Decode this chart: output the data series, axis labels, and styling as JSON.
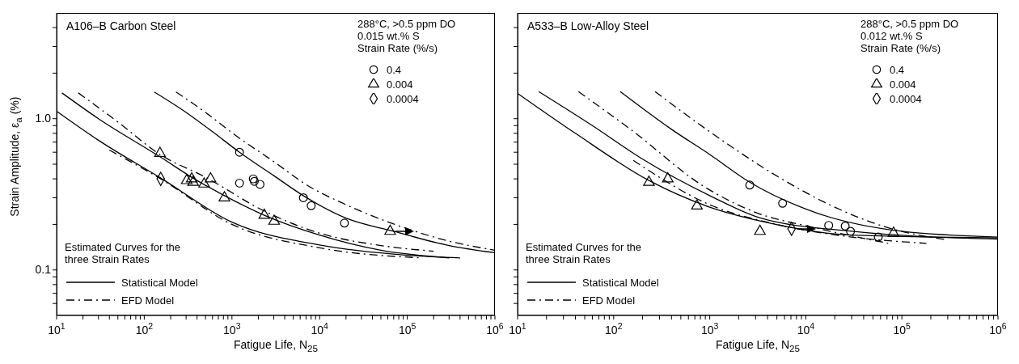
{
  "chart_data": [
    {
      "type": "scatter",
      "title": "A106–B Carbon Steel",
      "xlabel": "Fatigue Life, N$_{25}$",
      "ylabel": "Strain Amplitude, ε$_{a}$ (%)",
      "legend_title": "Strain Rate (%/s)",
      "legend": "bottom left",
      "log": "xy",
      "grid": false,
      "annotations": [
        "288°C, >0.5 ppm DO",
        "0.015 wt.% S",
        "Estimated Curves for the three Strain Rates"
      ],
      "xlim": [
        10,
        1000000
      ],
      "ylim": [
        0.05,
        5
      ],
      "xticks": [
        {
          "value": 10,
          "label": "10$^{1}$"
        },
        {
          "value": 20,
          "label": null
        },
        {
          "value": 30,
          "label": null
        },
        {
          "value": 40,
          "label": null
        },
        {
          "value": 50,
          "label": null
        },
        {
          "value": 60,
          "label": null
        },
        {
          "value": 70,
          "label": null
        },
        {
          "value": 80,
          "label": null
        },
        {
          "value": 90,
          "label": null
        },
        {
          "value": 100,
          "label": "10$^{2}$"
        },
        {
          "value": 200,
          "label": null
        },
        {
          "value": 300,
          "label": null
        },
        {
          "value": 400,
          "label": null
        },
        {
          "value": 500,
          "label": null
        },
        {
          "value": 600,
          "label": null
        },
        {
          "value": 700,
          "label": null
        },
        {
          "value": 800,
          "label": null
        },
        {
          "value": 900,
          "label": null
        },
        {
          "value": 1000,
          "label": "10$^{3}$"
        },
        {
          "value": 2000,
          "label": null
        },
        {
          "value": 3000,
          "label": null
        },
        {
          "value": 4000,
          "label": null
        },
        {
          "value": 5000,
          "label": null
        },
        {
          "value": 6000,
          "label": null
        },
        {
          "value": 7000,
          "label": null
        },
        {
          "value": 8000,
          "label": null
        },
        {
          "value": 9000,
          "label": null
        },
        {
          "value": 10000,
          "label": "10$^{4}$"
        },
        {
          "value": 20000,
          "label": null
        },
        {
          "value": 30000,
          "label": null
        },
        {
          "value": 40000,
          "label": null
        },
        {
          "value": 50000,
          "label": null
        },
        {
          "value": 60000,
          "label": null
        },
        {
          "value": 70000,
          "label": null
        },
        {
          "value": 80000,
          "label": null
        },
        {
          "value": 90000,
          "label": null
        },
        {
          "value": 100000,
          "label": "10$^{5}$"
        },
        {
          "value": 200000,
          "label": null
        },
        {
          "value": 300000,
          "label": null
        },
        {
          "value": 400000,
          "label": null
        },
        {
          "value": 500000,
          "label": null
        },
        {
          "value": 600000,
          "label": null
        },
        {
          "value": 700000,
          "label": null
        },
        {
          "value": 800000,
          "label": null
        },
        {
          "value": 900000,
          "label": null
        },
        {
          "value": 1000000,
          "label": "10$^{6}$"
        }
      ],
      "yticks": [
        {
          "value": 0.06,
          "label": null
        },
        {
          "value": 0.07,
          "label": null
        },
        {
          "value": 0.08,
          "label": null
        },
        {
          "value": 0.09,
          "label": null
        },
        0.1,
        {
          "value": 0.2,
          "label": null
        },
        {
          "value": 0.3,
          "label": null
        },
        {
          "value": 0.4,
          "label": null
        },
        {
          "value": 0.5,
          "label": null
        },
        {
          "value": 0.6,
          "label": null
        },
        {
          "value": 0.7,
          "label": null
        },
        {
          "value": 0.8,
          "label": null
        },
        {
          "value": 0.9,
          "label": null
        },
        {
          "value": 1,
          "label": "1.0"
        },
        {
          "value": 2,
          "label": null
        },
        {
          "value": 3,
          "label": null
        },
        {
          "value": 4,
          "label": null
        }
      ],
      "series": [
        {
          "name": "0.4",
          "marker": "circle",
          "color": "#000000",
          "x": [
            1220,
            1220,
            1750,
            1800,
            2090,
            6530,
            8020,
            19200
          ],
          "values": [
            0.6,
            0.375,
            0.4,
            0.385,
            0.368,
            0.3,
            0.266,
            0.204
          ]
        },
        {
          "name": "0.004",
          "marker": "triangle",
          "color": "#000000",
          "x": [
            151,
            305,
            348,
            361,
            482,
            570,
            820,
            2340,
            3030,
            63800
          ],
          "values": [
            0.59,
            0.39,
            0.4,
            0.38,
            0.37,
            0.4,
            0.3,
            0.23,
            0.21,
            0.18
          ]
        },
        {
          "name": "0.0004",
          "marker": "diamond",
          "color": "#000000",
          "x": [
            154
          ],
          "values": [
            0.4
          ]
        },
        {
          "name": "Statistical Model",
          "type": "line",
          "line_style": "solid",
          "color": "#000000",
          "x": [
            130,
            300,
            600,
            1220,
            3000,
            6500,
            20000,
            70000,
            300000,
            1000000
          ],
          "values": [
            1.5,
            1.1,
            0.82,
            0.6,
            0.42,
            0.31,
            0.22,
            0.18,
            0.145,
            0.13
          ]
        },
        {
          "name": "EFD Model",
          "type": "line",
          "line_style": "dashdot",
          "color": "#000000",
          "x": [
            230,
            500,
            1020,
            3000,
            7400,
            20000,
            72000,
            300000,
            1000000
          ],
          "values": [
            1.5,
            1.1,
            0.8,
            0.52,
            0.36,
            0.27,
            0.2,
            0.155,
            0.135
          ]
        },
        {
          "type": "line",
          "line_style": "solid",
          "color": "#000000",
          "x": [
            11.5,
            30,
            151,
            400,
            820,
            2340,
            10000,
            50000,
            300000
          ],
          "values": [
            1.48,
            1,
            0.56,
            0.39,
            0.31,
            0.23,
            0.17,
            0.135,
            0.12
          ]
        },
        {
          "type": "line",
          "line_style": "dashdot",
          "color": "#000000",
          "x": [
            17.7,
            50,
            151,
            500,
            2340,
            10000,
            50000,
            200000
          ],
          "values": [
            1.48,
            0.95,
            0.58,
            0.41,
            0.245,
            0.175,
            0.145,
            0.133
          ]
        },
        {
          "type": "line",
          "line_style": "solid",
          "color": "#000000",
          "x": [
            10,
            30,
            154,
            1000,
            10000,
            100000,
            400000
          ],
          "values": [
            1.12,
            0.72,
            0.405,
            0.207,
            0.146,
            0.125,
            0.12
          ]
        },
        {
          "type": "line",
          "line_style": "dashdot",
          "color": "#000000",
          "x": [
            40,
            154,
            1000,
            10000,
            150000
          ],
          "values": [
            0.62,
            0.4,
            0.2,
            0.14,
            0.12
          ]
        }
      ]
    },
    {
      "type": "scatter",
      "title": "A533–B Low-Alloy Steel",
      "xlabel": "Fatigue Life, N$_{25}$",
      "legend_title": "Strain Rate (%/s)",
      "legend": "bottom left",
      "log": "xy",
      "grid": false,
      "tick_labels": "x",
      "annotations": [
        "288°C, >0.5 ppm DO",
        "0.012 wt.% S",
        "Estimated Curves for the three Strain Rates"
      ],
      "xlim": [
        10,
        1000000
      ],
      "ylim": [
        0.05,
        5
      ],
      "xticks": [
        {
          "value": 10,
          "label": "10$^{1}$"
        },
        {
          "value": 20,
          "label": null
        },
        {
          "value": 30,
          "label": null
        },
        {
          "value": 40,
          "label": null
        },
        {
          "value": 50,
          "label": null
        },
        {
          "value": 60,
          "label": null
        },
        {
          "value": 70,
          "label": null
        },
        {
          "value": 80,
          "label": null
        },
        {
          "value": 90,
          "label": null
        },
        {
          "value": 100,
          "label": "10$^{2}$"
        },
        {
          "value": 200,
          "label": null
        },
        {
          "value": 300,
          "label": null
        },
        {
          "value": 400,
          "label": null
        },
        {
          "value": 500,
          "label": null
        },
        {
          "value": 600,
          "label": null
        },
        {
          "value": 700,
          "label": null
        },
        {
          "value": 800,
          "label": null
        },
        {
          "value": 900,
          "label": null
        },
        {
          "value": 1000,
          "label": "10$^{3}$"
        },
        {
          "value": 2000,
          "label": null
        },
        {
          "value": 3000,
          "label": null
        },
        {
          "value": 4000,
          "label": null
        },
        {
          "value": 5000,
          "label": null
        },
        {
          "value": 6000,
          "label": null
        },
        {
          "value": 7000,
          "label": null
        },
        {
          "value": 8000,
          "label": null
        },
        {
          "value": 9000,
          "label": null
        },
        {
          "value": 10000,
          "label": "10$^{4}$"
        },
        {
          "value": 20000,
          "label": null
        },
        {
          "value": 30000,
          "label": null
        },
        {
          "value": 40000,
          "label": null
        },
        {
          "value": 50000,
          "label": null
        },
        {
          "value": 60000,
          "label": null
        },
        {
          "value": 70000,
          "label": null
        },
        {
          "value": 80000,
          "label": null
        },
        {
          "value": 90000,
          "label": null
        },
        {
          "value": 100000,
          "label": "10$^{5}$"
        },
        {
          "value": 200000,
          "label": null
        },
        {
          "value": 300000,
          "label": null
        },
        {
          "value": 400000,
          "label": null
        },
        {
          "value": 500000,
          "label": null
        },
        {
          "value": 600000,
          "label": null
        },
        {
          "value": 700000,
          "label": null
        },
        {
          "value": 800000,
          "label": null
        },
        {
          "value": 900000,
          "label": null
        },
        {
          "value": 1000000,
          "label": "10$^{6}$"
        }
      ],
      "yticks": [
        {
          "value": 0.06,
          "label": null
        },
        {
          "value": 0.07,
          "label": null
        },
        {
          "value": 0.08,
          "label": null
        },
        {
          "value": 0.09,
          "label": null
        },
        {
          "value": 0.1,
          "label": null
        },
        {
          "value": 0.2,
          "label": null
        },
        {
          "value": 0.3,
          "label": null
        },
        {
          "value": 0.4,
          "label": null
        },
        {
          "value": 0.5,
          "label": null
        },
        {
          "value": 0.6,
          "label": null
        },
        {
          "value": 0.7,
          "label": null
        },
        {
          "value": 0.8,
          "label": null
        },
        {
          "value": 0.9,
          "label": null
        },
        {
          "value": 1,
          "label": null
        },
        {
          "value": 2,
          "label": null
        },
        {
          "value": 3,
          "label": null
        },
        {
          "value": 4,
          "label": null
        }
      ],
      "series": [
        {
          "name": "0.4",
          "marker": "circle",
          "color": "#000000",
          "x": [
            2610,
            5730,
            17300,
            25700,
            29200,
            56800
          ],
          "values": [
            0.364,
            0.276,
            0.197,
            0.195,
            0.18,
            0.165
          ]
        },
        {
          "name": "0.004",
          "marker": "triangle",
          "color": "#000000",
          "x": [
            233,
            366,
            736,
            3330,
            81800
          ],
          "values": [
            0.38,
            0.4,
            0.265,
            0.18,
            0.175
          ]
        },
        {
          "name": "0.0004",
          "marker": "diamond",
          "color": "#000000",
          "x": [
            7110
          ],
          "values": [
            0.187
          ]
        },
        {
          "name": "Statistical Model",
          "type": "line",
          "line_style": "solid",
          "color": "#000000",
          "x": [
            117,
            400,
            1000,
            2610,
            12500,
            100000,
            1000000
          ],
          "values": [
            1.51,
            0.85,
            0.58,
            0.38,
            0.24,
            0.18,
            0.165
          ]
        },
        {
          "name": "EFD Model",
          "type": "line",
          "line_style": "dashdot",
          "color": "#000000",
          "x": [
            270,
            1000,
            5250,
            20000,
            72000,
            300000
          ],
          "values": [
            1.51,
            0.82,
            0.41,
            0.26,
            0.19,
            0.158
          ]
        },
        {
          "type": "line",
          "line_style": "solid",
          "color": "#000000",
          "x": [
            16.6,
            60,
            191,
            1000,
            3400,
            30000,
            1000000
          ],
          "values": [
            1.51,
            0.9,
            0.55,
            0.31,
            0.22,
            0.18,
            0.16
          ]
        },
        {
          "type": "line",
          "line_style": "dashdot",
          "color": "#000000",
          "x": [
            43,
            150,
            910,
            3000,
            12500,
            72000
          ],
          "values": [
            1.51,
            0.85,
            0.35,
            0.24,
            0.19,
            0.15
          ]
        },
        {
          "type": "line",
          "line_style": "solid",
          "color": "#000000",
          "x": [
            10,
            40,
            233,
            1000,
            3400,
            30000,
            1000000
          ],
          "values": [
            1.47,
            0.8,
            0.39,
            0.26,
            0.21,
            0.17,
            0.163
          ]
        },
        {
          "type": "line",
          "line_style": "dashdot",
          "color": "#000000",
          "x": [
            160,
            1000,
            5000,
            30000,
            180000
          ],
          "values": [
            0.53,
            0.27,
            0.2,
            0.165,
            0.15
          ]
        }
      ]
    }
  ]
}
